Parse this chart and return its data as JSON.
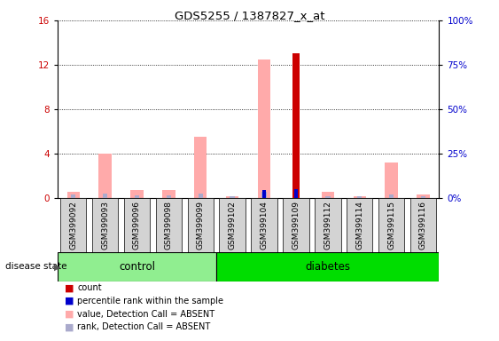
{
  "title": "GDS5255 / 1387827_x_at",
  "samples": [
    "GSM399092",
    "GSM399093",
    "GSM399096",
    "GSM399098",
    "GSM399099",
    "GSM399102",
    "GSM399104",
    "GSM399109",
    "GSM399112",
    "GSM399114",
    "GSM399115",
    "GSM399116"
  ],
  "groups": [
    "control",
    "control",
    "control",
    "control",
    "control",
    "diabetes",
    "diabetes",
    "diabetes",
    "diabetes",
    "diabetes",
    "diabetes",
    "diabetes"
  ],
  "count_values": [
    0,
    0,
    0,
    0,
    0,
    0,
    0,
    13.0,
    0,
    0,
    0,
    0
  ],
  "percentile_rank_values": [
    0,
    0,
    0,
    0,
    0,
    0,
    0.7,
    0.8,
    0,
    0,
    0,
    0
  ],
  "value_absent": [
    0.5,
    4.0,
    0.7,
    0.7,
    5.5,
    0.1,
    12.5,
    0,
    0.5,
    0.1,
    3.2,
    0.3
  ],
  "rank_absent": [
    0.3,
    0.4,
    0.2,
    0.2,
    0.4,
    0.1,
    0.5,
    0,
    0.1,
    0.1,
    0.3,
    0.1
  ],
  "ylim_left": [
    0,
    16
  ],
  "ylim_right": [
    0,
    100
  ],
  "yticks_left": [
    0,
    4,
    8,
    12,
    16
  ],
  "yticks_right": [
    0,
    25,
    50,
    75,
    100
  ],
  "color_count": "#cc0000",
  "color_percentile": "#0000cc",
  "color_value_absent": "#ffaaaa",
  "color_rank_absent": "#aaaacc",
  "control_color": "#90ee90",
  "diabetes_color": "#00dd00",
  "disease_state_label": "disease state",
  "group_label_control": "control",
  "group_label_diabetes": "diabetes",
  "n_control": 5,
  "n_diabetes": 7,
  "legend_items": [
    {
      "label": "count",
      "color": "#cc0000"
    },
    {
      "label": "percentile rank within the sample",
      "color": "#0000cc"
    },
    {
      "label": "value, Detection Call = ABSENT",
      "color": "#ffaaaa"
    },
    {
      "label": "rank, Detection Call = ABSENT",
      "color": "#aaaacc"
    }
  ]
}
